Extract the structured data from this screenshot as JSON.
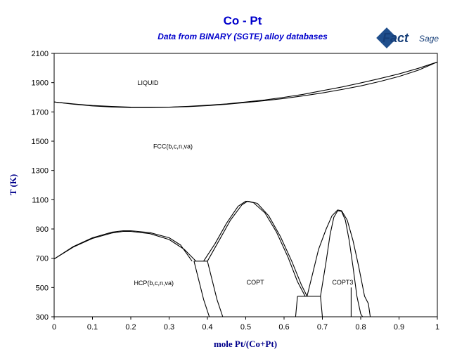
{
  "chart_data": {
    "type": "phase-diagram",
    "title": "Co - Pt",
    "subtitle": "Data from BINARY (SGTE) alloy databases",
    "xlabel": "mole Pt/(Co+Pt)",
    "ylabel": "T (K)",
    "xlim": [
      0,
      1
    ],
    "ylim": [
      300,
      2100
    ],
    "xticks": [
      "0",
      "0.1",
      "0.2",
      "0.3",
      "0.4",
      "0.5",
      "0.6",
      "0.7",
      "0.8",
      "0.9",
      "1"
    ],
    "yticks": [
      "300",
      "500",
      "700",
      "900",
      "1100",
      "1300",
      "1500",
      "1700",
      "1900",
      "2100"
    ],
    "region_labels": [
      {
        "text": "LIQUID",
        "x": 0.245,
        "y": 1885
      },
      {
        "text": "FCC(b,c,n,va)",
        "x": 0.31,
        "y": 1450
      },
      {
        "text": "HCP(b,c,n,va)",
        "x": 0.26,
        "y": 515
      },
      {
        "text": "COPT",
        "x": 0.525,
        "y": 520
      },
      {
        "text": "COPT3",
        "x": 0.753,
        "y": 520
      }
    ],
    "series": [
      {
        "values": [
          [
            0,
            1768
          ],
          [
            0.05,
            1755
          ],
          [
            0.1,
            1744
          ],
          [
            0.15,
            1737
          ],
          [
            0.2,
            1733
          ],
          [
            0.25,
            1732
          ],
          [
            0.3,
            1733
          ],
          [
            0.35,
            1738
          ],
          [
            0.4,
            1746
          ],
          [
            0.45,
            1755
          ],
          [
            0.5,
            1768
          ],
          [
            0.55,
            1782
          ],
          [
            0.6,
            1800
          ],
          [
            0.65,
            1820
          ],
          [
            0.7,
            1845
          ],
          [
            0.75,
            1870
          ],
          [
            0.8,
            1898
          ],
          [
            0.85,
            1928
          ],
          [
            0.9,
            1960
          ],
          [
            0.95,
            1998
          ],
          [
            1,
            2041
          ]
        ]
      },
      {
        "values": [
          [
            0,
            1768
          ],
          [
            0.05,
            1753
          ],
          [
            0.1,
            1741
          ],
          [
            0.15,
            1734
          ],
          [
            0.2,
            1730
          ],
          [
            0.25,
            1730
          ],
          [
            0.3,
            1732
          ],
          [
            0.35,
            1736
          ],
          [
            0.4,
            1743
          ],
          [
            0.45,
            1752
          ],
          [
            0.5,
            1764
          ],
          [
            0.55,
            1777
          ],
          [
            0.6,
            1792
          ],
          [
            0.65,
            1810
          ],
          [
            0.7,
            1830
          ],
          [
            0.75,
            1853
          ],
          [
            0.8,
            1878
          ],
          [
            0.85,
            1908
          ],
          [
            0.9,
            1942
          ],
          [
            0.95,
            1985
          ],
          [
            1,
            2041
          ]
        ]
      },
      {
        "values": [
          [
            0,
            695
          ],
          [
            0.05,
            780
          ],
          [
            0.1,
            840
          ],
          [
            0.15,
            878
          ],
          [
            0.18,
            888
          ],
          [
            0.2,
            888
          ],
          [
            0.25,
            875
          ],
          [
            0.3,
            840
          ],
          [
            0.33,
            790
          ],
          [
            0.36,
            680
          ]
        ]
      },
      {
        "values": [
          [
            0,
            695
          ],
          [
            0.05,
            776
          ],
          [
            0.1,
            835
          ],
          [
            0.15,
            872
          ],
          [
            0.18,
            883
          ],
          [
            0.2,
            883
          ],
          [
            0.25,
            868
          ],
          [
            0.3,
            828
          ],
          [
            0.34,
            760
          ],
          [
            0.37,
            680
          ]
        ]
      },
      {
        "values": [
          [
            0.365,
            680
          ],
          [
            0.4,
            680
          ]
        ]
      },
      {
        "values": [
          [
            0.365,
            680
          ],
          [
            0.39,
            418
          ],
          [
            0.405,
            300
          ]
        ]
      },
      {
        "values": [
          [
            0.4,
            680
          ],
          [
            0.425,
            418
          ],
          [
            0.44,
            300
          ]
        ]
      },
      {
        "values": [
          [
            0.39,
            680
          ],
          [
            0.42,
            800
          ],
          [
            0.45,
            940
          ],
          [
            0.48,
            1055
          ],
          [
            0.5,
            1090
          ],
          [
            0.52,
            1080
          ],
          [
            0.55,
            1010
          ],
          [
            0.58,
            880
          ],
          [
            0.61,
            710
          ],
          [
            0.635,
            540
          ],
          [
            0.655,
            440
          ]
        ]
      },
      {
        "values": [
          [
            0.4,
            680
          ],
          [
            0.43,
            820
          ],
          [
            0.46,
            960
          ],
          [
            0.49,
            1065
          ],
          [
            0.505,
            1090
          ],
          [
            0.53,
            1075
          ],
          [
            0.56,
            990
          ],
          [
            0.59,
            850
          ],
          [
            0.62,
            680
          ],
          [
            0.645,
            520
          ],
          [
            0.66,
            440
          ]
        ]
      },
      {
        "values": [
          [
            0.635,
            440
          ],
          [
            0.695,
            440
          ]
        ]
      },
      {
        "values": [
          [
            0.635,
            440
          ],
          [
            0.63,
            300
          ]
        ]
      },
      {
        "values": [
          [
            0.695,
            440
          ],
          [
            0.71,
            680
          ],
          [
            0.72,
            860
          ],
          [
            0.73,
            980
          ],
          [
            0.74,
            1025
          ],
          [
            0.75,
            1020
          ],
          [
            0.76,
            960
          ],
          [
            0.77,
            820
          ],
          [
            0.78,
            640
          ],
          [
            0.79,
            440
          ],
          [
            0.8,
            320
          ],
          [
            0.805,
            300
          ]
        ]
      },
      {
        "values": [
          [
            0.66,
            440
          ],
          [
            0.675,
            600
          ],
          [
            0.69,
            760
          ],
          [
            0.71,
            900
          ],
          [
            0.725,
            990
          ],
          [
            0.74,
            1030
          ],
          [
            0.75,
            1025
          ],
          [
            0.765,
            960
          ],
          [
            0.78,
            820
          ],
          [
            0.795,
            640
          ],
          [
            0.81,
            440
          ],
          [
            0.82,
            390
          ],
          [
            0.825,
            300
          ]
        ]
      },
      {
        "values": [
          [
            0.695,
            440
          ],
          [
            0.7,
            300
          ]
        ]
      },
      {
        "values": [
          [
            0.775,
            500
          ],
          [
            0.775,
            300
          ]
        ]
      }
    ]
  }
}
